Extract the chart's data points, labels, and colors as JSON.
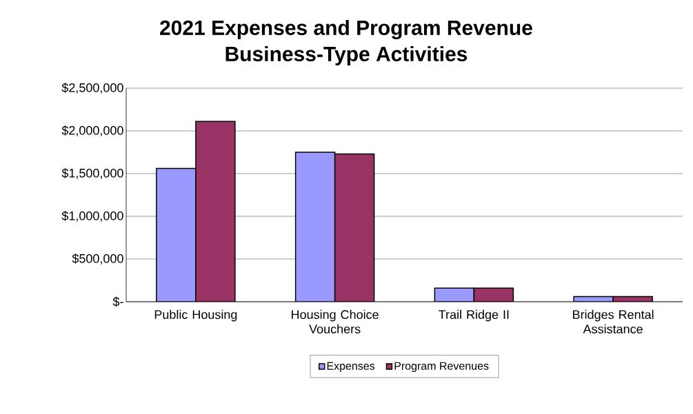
{
  "chart_data": {
    "type": "bar",
    "title": "2021 Expenses and Program Revenue",
    "subtitle": "Business-Type Activities",
    "categories": [
      "Public Housing",
      "Housing Choice Vouchers",
      "Trail Ridge II",
      "Bridges Rental Assistance"
    ],
    "series": [
      {
        "name": "Expenses",
        "color": "#9999ff",
        "values": [
          1560000,
          1750000,
          160000,
          60000
        ]
      },
      {
        "name": "Program Revenues",
        "color": "#993366",
        "values": [
          2110000,
          1730000,
          160000,
          60000
        ]
      }
    ],
    "ylim": [
      0,
      2500000
    ],
    "yticks": [
      {
        "value": 0,
        "label": "$-"
      },
      {
        "value": 500000,
        "label": "$500,000"
      },
      {
        "value": 1000000,
        "label": "$1,000,000"
      },
      {
        "value": 1500000,
        "label": "$1,500,000"
      },
      {
        "value": 2000000,
        "label": "$2,000,000"
      },
      {
        "value": 2500000,
        "label": "$2,500,000"
      }
    ],
    "grid": "y",
    "legend": "bottom"
  }
}
